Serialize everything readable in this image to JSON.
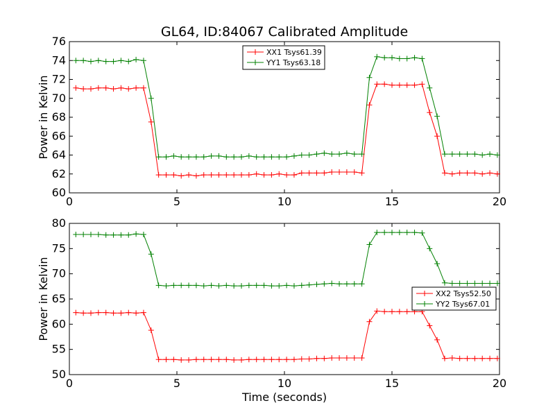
{
  "chart_data": [
    {
      "type": "line",
      "title": "GL64, ID:84067 Calibrated Amplitude",
      "xlabel": "",
      "ylabel": "Power in Kelvin",
      "xlim": [
        0,
        20
      ],
      "ylim": [
        60,
        76
      ],
      "xticks": [
        "0",
        "5",
        "10",
        "15",
        "20"
      ],
      "yticks": [
        "60",
        "62",
        "64",
        "66",
        "68",
        "70",
        "72",
        "74",
        "76"
      ],
      "legend_position": "top-center",
      "grid": false,
      "x": [
        0.3,
        0.65,
        1.0,
        1.35,
        1.7,
        2.05,
        2.4,
        2.75,
        3.1,
        3.45,
        3.8,
        4.15,
        4.5,
        4.85,
        5.2,
        5.55,
        5.9,
        6.25,
        6.6,
        6.95,
        7.3,
        7.65,
        8.0,
        8.35,
        8.7,
        9.05,
        9.4,
        9.75,
        10.1,
        10.45,
        10.8,
        11.15,
        11.5,
        11.85,
        12.2,
        12.55,
        12.9,
        13.25,
        13.6,
        13.95,
        14.3,
        14.65,
        15.0,
        15.35,
        15.7,
        16.05,
        16.4,
        16.75,
        17.1,
        17.45,
        17.8,
        18.15,
        18.5,
        18.85,
        19.2,
        19.55,
        19.9
      ],
      "series": [
        {
          "name": "XX1 Tsys61.39",
          "color": "#ff0000",
          "values": [
            71.1,
            71.0,
            71.0,
            71.1,
            71.1,
            71.0,
            71.1,
            71.0,
            71.1,
            71.1,
            67.5,
            61.9,
            61.9,
            61.9,
            61.8,
            61.9,
            61.8,
            61.9,
            61.9,
            61.9,
            61.9,
            61.9,
            61.9,
            61.9,
            62.0,
            61.9,
            61.9,
            62.0,
            61.9,
            61.9,
            62.1,
            62.1,
            62.1,
            62.1,
            62.2,
            62.2,
            62.2,
            62.2,
            62.1,
            69.3,
            71.5,
            71.5,
            71.4,
            71.4,
            71.4,
            71.4,
            71.5,
            68.5,
            66.0,
            62.1,
            62.0,
            62.1,
            62.1,
            62.1,
            62.0,
            62.1,
            62.0
          ]
        },
        {
          "name": "YY1 Tsys63.18",
          "color": "#008000",
          "values": [
            74.0,
            74.0,
            73.9,
            74.0,
            73.9,
            73.9,
            74.0,
            73.9,
            74.1,
            74.0,
            70.0,
            63.8,
            63.8,
            63.9,
            63.8,
            63.8,
            63.8,
            63.8,
            63.9,
            63.9,
            63.8,
            63.8,
            63.8,
            63.9,
            63.8,
            63.8,
            63.8,
            63.8,
            63.8,
            63.9,
            64.0,
            64.0,
            64.1,
            64.2,
            64.1,
            64.1,
            64.2,
            64.1,
            64.1,
            72.2,
            74.4,
            74.3,
            74.3,
            74.2,
            74.2,
            74.3,
            74.2,
            71.1,
            68.1,
            64.1,
            64.1,
            64.1,
            64.1,
            64.1,
            64.0,
            64.1,
            64.0
          ]
        }
      ]
    },
    {
      "type": "line",
      "title": "",
      "xlabel": "Time (seconds)",
      "ylabel": "Power in Kelvin",
      "xlim": [
        0,
        20
      ],
      "ylim": [
        50,
        80
      ],
      "xticks": [
        "0",
        "5",
        "10",
        "15",
        "20"
      ],
      "yticks": [
        "50",
        "55",
        "60",
        "65",
        "70",
        "75",
        "80"
      ],
      "legend_position": "center-right",
      "grid": false,
      "x": [
        0.3,
        0.65,
        1.0,
        1.35,
        1.7,
        2.05,
        2.4,
        2.75,
        3.1,
        3.45,
        3.8,
        4.15,
        4.5,
        4.85,
        5.2,
        5.55,
        5.9,
        6.25,
        6.6,
        6.95,
        7.3,
        7.65,
        8.0,
        8.35,
        8.7,
        9.05,
        9.4,
        9.75,
        10.1,
        10.45,
        10.8,
        11.15,
        11.5,
        11.85,
        12.2,
        12.55,
        12.9,
        13.25,
        13.6,
        13.95,
        14.3,
        14.65,
        15.0,
        15.35,
        15.7,
        16.05,
        16.4,
        16.75,
        17.1,
        17.45,
        17.8,
        18.15,
        18.5,
        18.85,
        19.2,
        19.55,
        19.9
      ],
      "series": [
        {
          "name": "XX2 Tsys52.50",
          "color": "#ff0000",
          "values": [
            62.3,
            62.2,
            62.2,
            62.3,
            62.3,
            62.2,
            62.2,
            62.3,
            62.2,
            62.3,
            58.8,
            53.0,
            53.0,
            53.0,
            52.9,
            52.9,
            53.0,
            53.0,
            53.0,
            53.0,
            53.0,
            52.9,
            52.9,
            53.0,
            53.0,
            53.0,
            53.0,
            53.0,
            53.0,
            53.0,
            53.1,
            53.1,
            53.2,
            53.2,
            53.3,
            53.3,
            53.3,
            53.3,
            53.3,
            60.5,
            62.6,
            62.5,
            62.5,
            62.5,
            62.5,
            62.5,
            62.5,
            59.7,
            56.9,
            53.2,
            53.3,
            53.2,
            53.2,
            53.2,
            53.2,
            53.2,
            53.2
          ]
        },
        {
          "name": "YY2 Tsys67.01",
          "color": "#008000",
          "values": [
            77.8,
            77.8,
            77.8,
            77.8,
            77.7,
            77.7,
            77.7,
            77.7,
            77.9,
            77.8,
            73.9,
            67.7,
            67.6,
            67.7,
            67.7,
            67.7,
            67.7,
            67.6,
            67.7,
            67.6,
            67.7,
            67.6,
            67.6,
            67.7,
            67.7,
            67.7,
            67.6,
            67.6,
            67.7,
            67.6,
            67.7,
            67.8,
            67.9,
            68.0,
            68.1,
            68.0,
            68.0,
            68.0,
            68.0,
            75.8,
            78.2,
            78.2,
            78.2,
            78.2,
            78.2,
            78.2,
            78.1,
            75.0,
            72.0,
            68.2,
            68.1,
            68.1,
            68.1,
            68.1,
            68.1,
            68.1,
            68.1
          ]
        }
      ]
    }
  ]
}
